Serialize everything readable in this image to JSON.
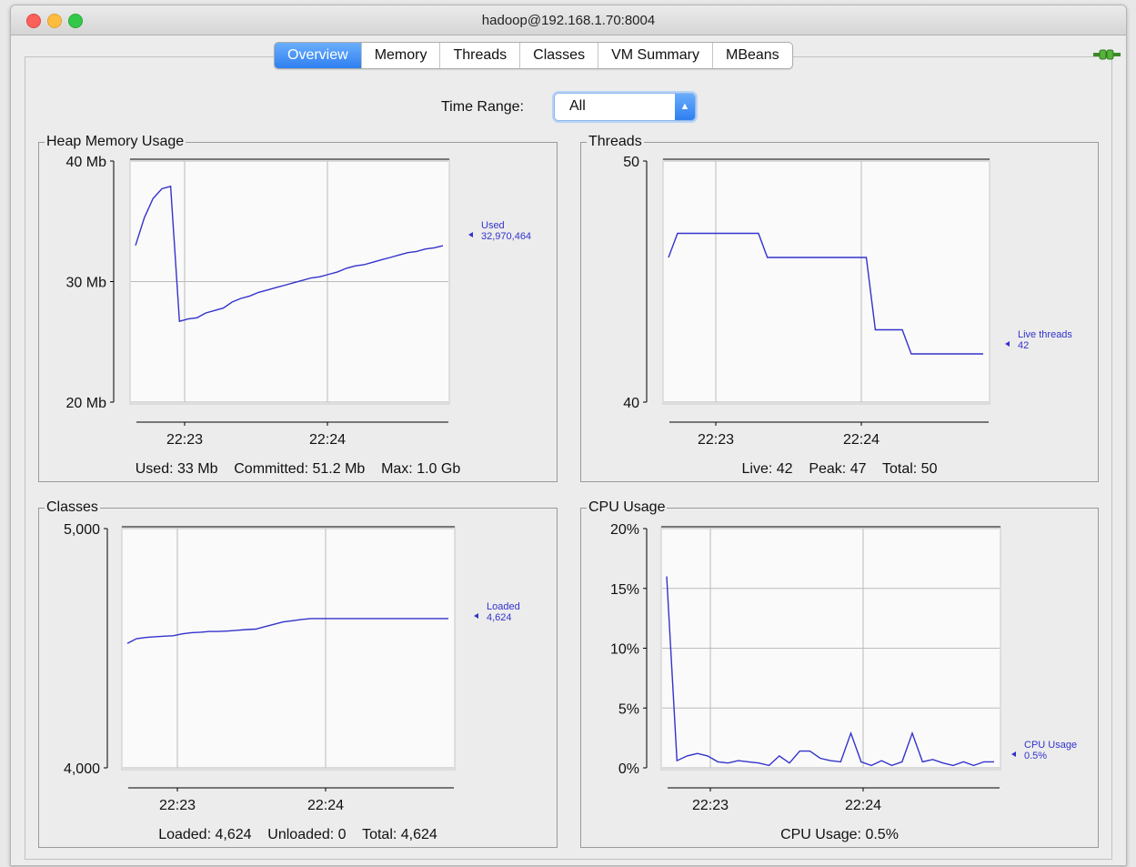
{
  "window": {
    "title": "hadoop@192.168.1.70:8004"
  },
  "tabs": [
    "Overview",
    "Memory",
    "Threads",
    "Classes",
    "VM Summary",
    "MBeans"
  ],
  "active_tab": "Overview",
  "time_range": {
    "label": "Time Range:",
    "value": "All"
  },
  "icons": {
    "connection": "plug-icon",
    "select": "stepper-arrows-icon"
  },
  "colors": {
    "line": "#3333cc",
    "tab_active": "#2f7ff0"
  },
  "panels": {
    "heap": {
      "title": "Heap Memory Usage",
      "summary": "Used: 33 Mb    Committed: 51.2 Mb    Max: 1.0 Gb",
      "annotation": {
        "label": "Used",
        "value": "32,970,464"
      }
    },
    "threads": {
      "title": "Threads",
      "summary": "Live: 42    Peak: 47    Total: 50",
      "annotation": {
        "label": "Live threads",
        "value": "42"
      }
    },
    "classes": {
      "title": "Classes",
      "summary": "Loaded: 4,624    Unloaded: 0    Total: 4,624",
      "annotation": {
        "label": "Loaded",
        "value": "4,624"
      }
    },
    "cpu": {
      "title": "CPU Usage",
      "summary": "CPU Usage: 0.5%",
      "annotation": {
        "label": "CPU Usage",
        "value": "0.5%"
      }
    }
  },
  "chart_data": [
    {
      "id": "heap",
      "type": "line",
      "title": "Heap Memory Usage",
      "x_ticks": [
        "22:23",
        "22:24"
      ],
      "y_ticks": [
        "40 Mb",
        "30 Mb",
        "20 Mb"
      ],
      "y_tick_values": [
        40,
        30,
        20
      ],
      "ylim": [
        20,
        40
      ],
      "y_unit": "Mb",
      "grid": true,
      "series": [
        {
          "name": "Used",
          "values": [
            33.0,
            35.3,
            36.9,
            37.7,
            37.9,
            26.7,
            26.9,
            27.0,
            27.4,
            27.6,
            27.8,
            28.3,
            28.6,
            28.8,
            29.1,
            29.3,
            29.5,
            29.7,
            29.9,
            30.1,
            30.3,
            30.4,
            30.6,
            30.8,
            31.1,
            31.3,
            31.4,
            31.6,
            31.8,
            32.0,
            32.2,
            32.4,
            32.5,
            32.7,
            32.8,
            32.97
          ]
        }
      ]
    },
    {
      "id": "threads",
      "type": "line",
      "title": "Threads",
      "x_ticks": [
        "22:23",
        "22:24"
      ],
      "y_ticks": [
        "50",
        "40"
      ],
      "y_tick_values": [
        50,
        40
      ],
      "ylim": [
        40,
        50
      ],
      "grid": true,
      "series": [
        {
          "name": "Live threads",
          "values": [
            46,
            47,
            47,
            47,
            47,
            47,
            47,
            47,
            47,
            47,
            47,
            46,
            46,
            46,
            46,
            46,
            46,
            46,
            46,
            46,
            46,
            46,
            46,
            43,
            43,
            43,
            43,
            42,
            42,
            42,
            42,
            42,
            42,
            42,
            42,
            42
          ]
        }
      ]
    },
    {
      "id": "classes",
      "type": "line",
      "title": "Classes",
      "x_ticks": [
        "22:23",
        "22:24"
      ],
      "y_ticks": [
        "5,000",
        "4,000"
      ],
      "y_tick_values": [
        5000,
        4000
      ],
      "ylim": [
        4000,
        5000
      ],
      "grid": true,
      "series": [
        {
          "name": "Loaded",
          "values": [
            4520,
            4540,
            4545,
            4548,
            4550,
            4552,
            4560,
            4565,
            4567,
            4570,
            4570,
            4572,
            4575,
            4578,
            4580,
            4590,
            4600,
            4610,
            4615,
            4620,
            4624,
            4624,
            4624,
            4624,
            4624,
            4624,
            4624,
            4624,
            4624,
            4624,
            4624,
            4624,
            4624,
            4624,
            4624,
            4624
          ]
        }
      ]
    },
    {
      "id": "cpu",
      "type": "line",
      "title": "CPU Usage",
      "x_ticks": [
        "22:23",
        "22:24"
      ],
      "y_ticks": [
        "20%",
        "15%",
        "10%",
        "5%",
        "0%"
      ],
      "y_tick_values": [
        20,
        15,
        10,
        5,
        0
      ],
      "ylim": [
        0,
        20
      ],
      "y_unit": "%",
      "grid": true,
      "series": [
        {
          "name": "CPU Usage",
          "values": [
            16,
            0.6,
            1.0,
            1.2,
            1.0,
            0.5,
            0.4,
            0.6,
            0.5,
            0.4,
            0.2,
            1.0,
            0.4,
            1.4,
            1.4,
            0.8,
            0.6,
            0.5,
            2.9,
            0.5,
            0.2,
            0.6,
            0.2,
            0.5,
            2.9,
            0.5,
            0.7,
            0.4,
            0.2,
            0.5,
            0.2,
            0.5,
            0.5
          ]
        }
      ]
    }
  ]
}
